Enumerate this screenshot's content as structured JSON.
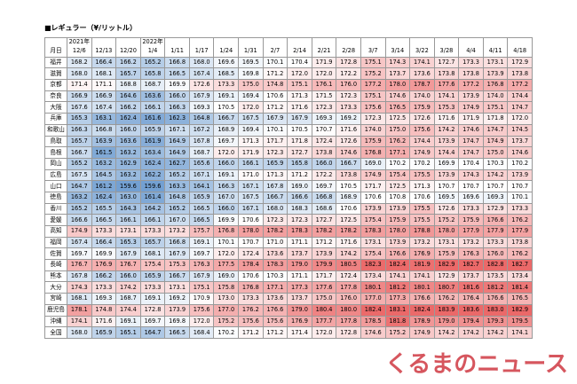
{
  "title": "■レギュラー（¥/リットル）",
  "header_label": "月日",
  "years": [
    "2021年",
    "2022年"
  ],
  "columns": [
    "12/6",
    "12/13",
    "12/20",
    "1/4",
    "1/11",
    "1/17",
    "1/24",
    "1/31",
    "2/7",
    "2/14",
    "2/21",
    "2/28",
    "3/7",
    "3/14",
    "3/22",
    "3/28",
    "4/4",
    "4/11",
    "4/18"
  ],
  "rows": [
    {
      "label": "福井",
      "values": [
        "168.2",
        "166.4",
        "166.2",
        "165.2",
        "166.8",
        "168.0",
        "169.6",
        "169.5",
        "170.1",
        "170.4",
        "171.9",
        "172.8",
        "175.1",
        "174.3",
        "174.1",
        "172.7",
        "173.3",
        "173.1",
        "172.9"
      ]
    },
    {
      "label": "滋賀",
      "values": [
        "168.0",
        "168.1",
        "165.7",
        "165.8",
        "166.5",
        "167.4",
        "168.5",
        "169.8",
        "171.2",
        "172.0",
        "172.0",
        "172.2",
        "175.2",
        "173.7",
        "173.6",
        "173.8",
        "173.8",
        "173.9",
        "173.8"
      ]
    },
    {
      "label": "京都",
      "values": [
        "171.4",
        "171.1",
        "168.8",
        "168.7",
        "169.9",
        "172.6",
        "173.3",
        "175.0",
        "174.8",
        "175.1",
        "176.1",
        "176.0",
        "177.2",
        "178.0",
        "178.7",
        "177.6",
        "177.2",
        "176.8",
        "177.2"
      ]
    },
    {
      "label": "奈良",
      "values": [
        "166.9",
        "166.9",
        "164.6",
        "163.6",
        "166.0",
        "167.9",
        "169.1",
        "169.4",
        "170.6",
        "171.3",
        "171.5",
        "172.3",
        "175.1",
        "174.6",
        "174.0",
        "174.1",
        "173.9",
        "174.0",
        "174.4"
      ]
    },
    {
      "label": "大阪",
      "values": [
        "167.6",
        "167.4",
        "166.2",
        "166.1",
        "166.3",
        "169.3",
        "170.5",
        "172.0",
        "171.2",
        "171.6",
        "172.3",
        "173.3",
        "175.6",
        "176.5",
        "175.9",
        "175.3",
        "174.9",
        "175.1",
        "174.7"
      ]
    },
    {
      "label": "兵庫",
      "values": [
        "165.3",
        "163.1",
        "162.4",
        "161.6",
        "162.3",
        "164.8",
        "166.7",
        "167.5",
        "167.9",
        "167.9",
        "169.3",
        "169.2",
        "172.3",
        "172.5",
        "172.6",
        "171.6",
        "171.9",
        "171.8",
        "172.0"
      ]
    },
    {
      "label": "和歌山",
      "values": [
        "166.3",
        "166.8",
        "166.0",
        "165.9",
        "167.1",
        "167.2",
        "168.9",
        "169.4",
        "170.1",
        "170.5",
        "170.7",
        "171.6",
        "174.0",
        "175.0",
        "175.6",
        "174.2",
        "174.6",
        "174.7",
        "174.5"
      ]
    },
    {
      "label": "鳥取",
      "values": [
        "165.7",
        "163.9",
        "163.6",
        "161.9",
        "164.9",
        "167.8",
        "169.7",
        "171.3",
        "171.7",
        "171.8",
        "172.4",
        "172.6",
        "175.9",
        "176.2",
        "174.4",
        "173.9",
        "174.7",
        "174.9",
        "173.7"
      ]
    },
    {
      "label": "島根",
      "values": [
        "166.7",
        "161.5",
        "163.2",
        "163.4",
        "164.9",
        "168.7",
        "172.0",
        "171.9",
        "172.3",
        "172.7",
        "173.8",
        "174.6",
        "176.8",
        "177.1",
        "174.9",
        "174.4",
        "174.7",
        "175.0",
        "174.6"
      ]
    },
    {
      "label": "岡山",
      "values": [
        "165.2",
        "163.2",
        "162.9",
        "162.4",
        "162.7",
        "165.6",
        "166.0",
        "166.1",
        "165.9",
        "165.8",
        "166.0",
        "166.7",
        "169.0",
        "170.2",
        "170.2",
        "169.9",
        "170.4",
        "170.3",
        "170.2"
      ]
    },
    {
      "label": "広島",
      "values": [
        "167.5",
        "164.5",
        "163.2",
        "162.2",
        "165.2",
        "167.1",
        "169.1",
        "171.0",
        "171.3",
        "171.2",
        "172.2",
        "173.8",
        "174.9",
        "175.4",
        "175.5",
        "173.9",
        "174.3",
        "174.2",
        "173.9"
      ]
    },
    {
      "label": "山口",
      "values": [
        "164.7",
        "161.2",
        "159.6",
        "159.6",
        "163.3",
        "164.1",
        "166.3",
        "167.1",
        "167.8",
        "169.0",
        "169.7",
        "170.5",
        "171.7",
        "172.5",
        "171.3",
        "170.7",
        "170.7",
        "170.7",
        "170.7"
      ]
    },
    {
      "label": "徳島",
      "values": [
        "163.2",
        "162.4",
        "163.0",
        "161.4",
        "164.8",
        "165.9",
        "167.0",
        "167.5",
        "166.7",
        "166.6",
        "166.8",
        "168.9",
        "170.6",
        "170.8",
        "170.6",
        "169.5",
        "169.6",
        "169.3",
        "170.1"
      ]
    },
    {
      "label": "香川",
      "values": [
        "165.2",
        "165.5",
        "164.3",
        "164.2",
        "165.2",
        "166.5",
        "166.0",
        "167.1",
        "168.0",
        "168.3",
        "168.6",
        "170.6",
        "173.9",
        "173.9",
        "175.5",
        "172.6",
        "173.3",
        "172.9",
        "173.3"
      ]
    },
    {
      "label": "愛媛",
      "values": [
        "166.6",
        "166.5",
        "166.1",
        "166.1",
        "167.0",
        "166.5",
        "169.9",
        "170.6",
        "172.3",
        "172.3",
        "172.7",
        "172.5",
        "175.4",
        "175.9",
        "175.5",
        "175.2",
        "175.9",
        "176.6",
        "176.2"
      ]
    },
    {
      "label": "高知",
      "values": [
        "174.9",
        "173.3",
        "173.1",
        "173.3",
        "173.2",
        "175.7",
        "176.8",
        "178.0",
        "178.2",
        "178.3",
        "178.2",
        "178.2",
        "178.3",
        "178.0",
        "178.8",
        "178.0",
        "177.9",
        "177.9",
        "177.9"
      ]
    },
    {
      "label": "福岡",
      "values": [
        "167.4",
        "166.4",
        "165.3",
        "165.7",
        "166.8",
        "169.1",
        "170.1",
        "170.7",
        "171.0",
        "171.1",
        "171.2",
        "171.6",
        "173.1",
        "173.9",
        "173.2",
        "173.1",
        "173.2",
        "173.3",
        "173.8"
      ]
    },
    {
      "label": "佐賀",
      "values": [
        "169.7",
        "169.9",
        "167.9",
        "168.1",
        "167.9",
        "169.7",
        "172.0",
        "172.4",
        "173.6",
        "173.7",
        "173.9",
        "174.2",
        "175.4",
        "176.6",
        "176.9",
        "175.9",
        "176.3",
        "176.0",
        "176.2"
      ]
    },
    {
      "label": "長崎",
      "values": [
        "176.7",
        "176.9",
        "176.7",
        "175.4",
        "175.3",
        "176.3",
        "177.5",
        "178.4",
        "178.3",
        "179.0",
        "179.9",
        "180.5",
        "182.3",
        "182.4",
        "181.9",
        "182.9",
        "182.7",
        "182.8",
        "182.7"
      ]
    },
    {
      "label": "熊本",
      "values": [
        "167.8",
        "166.2",
        "166.0",
        "165.9",
        "166.7",
        "167.9",
        "169.0",
        "170.6",
        "170.3",
        "171.1",
        "171.7",
        "172.4",
        "173.4",
        "174.1",
        "174.1",
        "172.9",
        "173.7",
        "173.5",
        "173.4"
      ]
    },
    {
      "label": "大分",
      "values": [
        "174.3",
        "173.3",
        "174.2",
        "173.3",
        "173.1",
        "175.1",
        "175.8",
        "176.8",
        "177.1",
        "177.3",
        "177.6",
        "177.8",
        "180.1",
        "181.2",
        "180.1",
        "180.7",
        "181.6",
        "181.2",
        "181.4"
      ]
    },
    {
      "label": "宮崎",
      "values": [
        "168.1",
        "169.3",
        "168.7",
        "169.1",
        "169.2",
        "170.9",
        "173.0",
        "173.3",
        "173.6",
        "173.7",
        "175.0",
        "176.0",
        "177.0",
        "177.3",
        "176.6",
        "176.2",
        "176.4",
        "176.6",
        "176.5"
      ]
    },
    {
      "label": "鹿児島",
      "values": [
        "178.1",
        "174.8",
        "174.4",
        "172.8",
        "173.9",
        "175.6",
        "177.0",
        "176.2",
        "176.6",
        "179.0",
        "180.4",
        "180.0",
        "182.4",
        "183.1",
        "182.4",
        "183.9",
        "183.6",
        "183.0",
        "182.9"
      ]
    },
    {
      "label": "沖縄",
      "values": [
        "174.1",
        "171.6",
        "169.1",
        "169.7",
        "169.8",
        "172.0",
        "175.2",
        "175.6",
        "175.6",
        "176.9",
        "177.7",
        "177.8",
        "178.5",
        "181.8",
        "178.9",
        "179.0",
        "179.4",
        "179.3",
        "179.5"
      ]
    },
    {
      "label": "全国",
      "values": [
        "168.0",
        "165.9",
        "165.1",
        "164.7",
        "166.5",
        "168.4",
        "170.2",
        "171.2",
        "171.2",
        "171.4",
        "172.0",
        "172.8",
        "174.6",
        "175.2",
        "174.9",
        "174.2",
        "174.2",
        "174.2",
        "174.1"
      ]
    }
  ],
  "watermark": "くるまのニュース"
}
